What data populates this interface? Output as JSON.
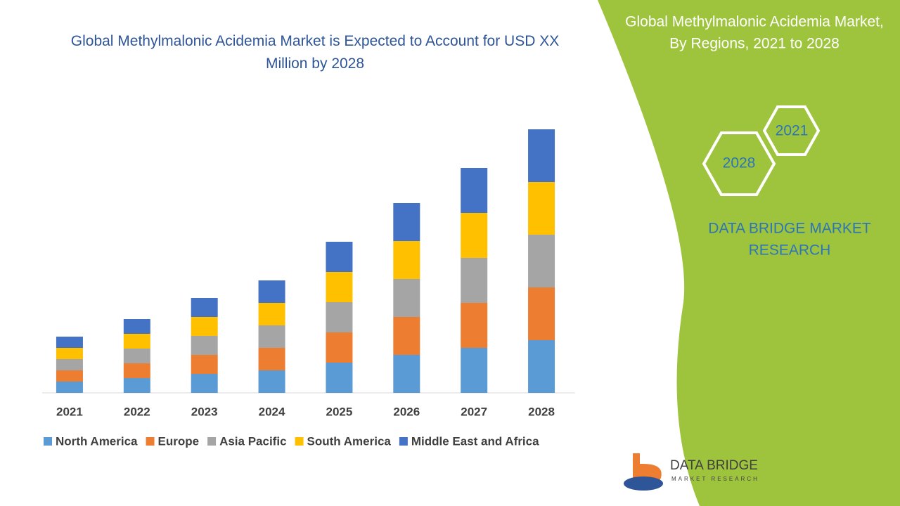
{
  "chart_data": {
    "type": "stacked-bar",
    "title": "Global Methylmalonic Acidemia Market is Expected to Account for USD XX Million by 2028",
    "categories": [
      "2021",
      "2022",
      "2023",
      "2024",
      "2025",
      "2026",
      "2027",
      "2028"
    ],
    "series": [
      {
        "name": "North America",
        "color": "#5b9bd5",
        "values": [
          16,
          21,
          27,
          32,
          43,
          54,
          64,
          75
        ]
      },
      {
        "name": "Europe",
        "color": "#ed7d31",
        "values": [
          16,
          21,
          27,
          32,
          43,
          54,
          64,
          75
        ]
      },
      {
        "name": "Asia Pacific",
        "color": "#a5a5a5",
        "values": [
          16,
          21,
          27,
          32,
          43,
          54,
          64,
          75
        ]
      },
      {
        "name": "South America",
        "color": "#ffc000",
        "values": [
          16,
          21,
          27,
          32,
          43,
          54,
          64,
          75
        ]
      },
      {
        "name": "Middle East and Africa",
        "color": "#4472c4",
        "values": [
          16,
          21,
          27,
          32,
          43,
          54,
          64,
          75
        ]
      }
    ]
  },
  "panel": {
    "title": "Global Methylmalonic Acidemia Market, By Regions, 2021 to 2028",
    "hex_start": "2021",
    "hex_end": "2028",
    "brand": "DATA BRIDGE MARKET RESEARCH"
  },
  "logo": {
    "name": "DATA BRIDGE",
    "tagline": "MARKET RESEARCH"
  }
}
